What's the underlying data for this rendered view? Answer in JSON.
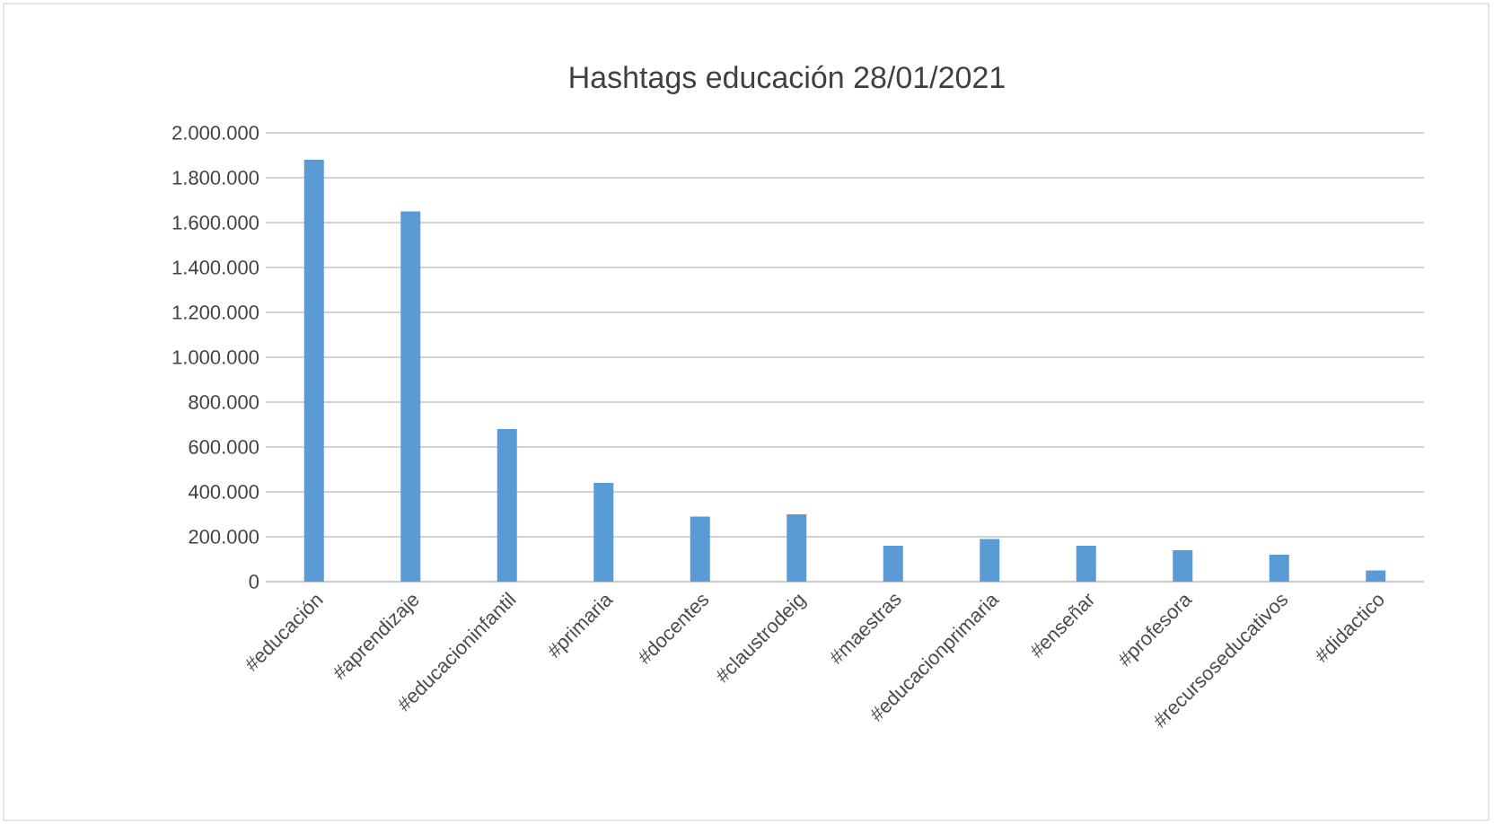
{
  "chart_data": {
    "type": "bar",
    "title": "Hashtags educación 28/01/2021",
    "categories": [
      "#educación",
      "#aprendizaje",
      "#educacioninfantil",
      "#primaria",
      "#docentes",
      "#claustrodeig",
      "#maestras",
      "#educacionprimaria",
      "#enseñar",
      "#profesora",
      "#recursoseducativos",
      "#didactico"
    ],
    "values": [
      1880000,
      1650000,
      680000,
      440000,
      290000,
      300000,
      160000,
      190000,
      160000,
      140000,
      120000,
      50000
    ],
    "color": "#5b9bd5",
    "ylim": [
      0,
      2000000
    ],
    "yticks": [
      0,
      {
        "value": 200000,
        "label": "200.000"
      },
      {
        "value": 400000,
        "label": "400.000"
      },
      {
        "value": 600000,
        "label": "600.000"
      },
      {
        "value": 800000,
        "label": "800.000"
      },
      {
        "value": 1000000,
        "label": "1.000.000"
      },
      {
        "value": 1200000,
        "label": "1.200.000"
      },
      {
        "value": 1400000,
        "label": "1.400.000"
      },
      {
        "value": 1600000,
        "label": "1.600.000"
      },
      {
        "value": 1800000,
        "label": "1.800.000"
      },
      {
        "value": 2000000,
        "label": "2.000.000"
      }
    ],
    "grid": "y"
  }
}
